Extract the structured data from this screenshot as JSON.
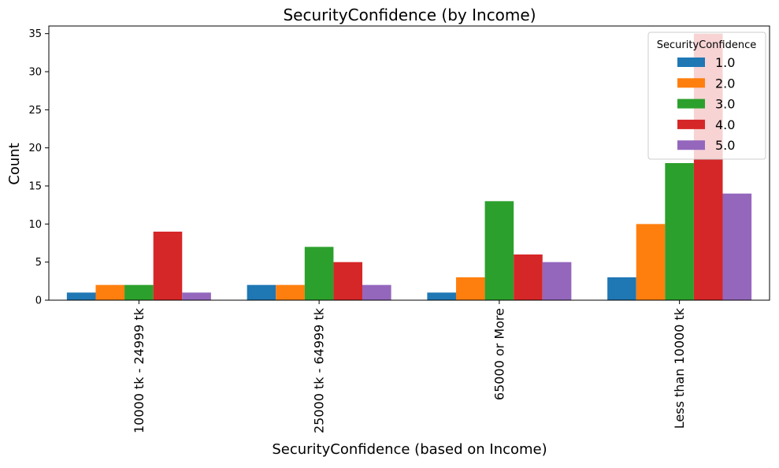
{
  "chart_data": {
    "type": "bar",
    "title": "SecurityConfidence (by Income)",
    "xlabel": "SecurityConfidence (based on Income)",
    "ylabel": "Count",
    "ylim": [
      0,
      36
    ],
    "yticks": [
      0,
      5,
      10,
      15,
      20,
      25,
      30,
      35
    ],
    "categories": [
      "10000 tk - 24999 tk",
      "25000 tk - 64999 tk",
      "65000 or More",
      "Less than 10000 tk"
    ],
    "legend": {
      "title": "SecurityConfidence",
      "position": "top-right"
    },
    "grid": false,
    "series": [
      {
        "name": "1.0",
        "color": "#1f77b4",
        "values": [
          1,
          2,
          1,
          3
        ]
      },
      {
        "name": "2.0",
        "color": "#ff7f0e",
        "values": [
          2,
          2,
          3,
          10
        ]
      },
      {
        "name": "3.0",
        "color": "#2ca02c",
        "values": [
          2,
          7,
          13,
          18
        ]
      },
      {
        "name": "4.0",
        "color": "#d62728",
        "values": [
          9,
          5,
          6,
          35
        ]
      },
      {
        "name": "5.0",
        "color": "#9467bd",
        "values": [
          1,
          2,
          5,
          14
        ]
      }
    ]
  }
}
